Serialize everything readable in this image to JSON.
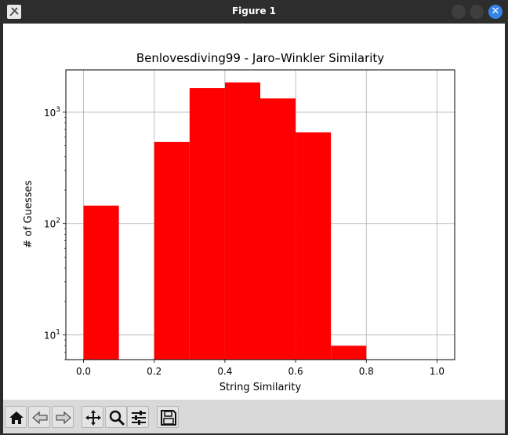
{
  "window": {
    "title": "Figure 1",
    "close_glyph": "✕"
  },
  "toolbar": {
    "buttons": [
      "home-icon",
      "back-icon",
      "forward-icon",
      "pan-icon",
      "zoom-icon",
      "configure-subplots-icon",
      "save-icon"
    ]
  },
  "colors": {
    "bar": "#ff0000",
    "grid": "#b0b0b0"
  },
  "chart_data": {
    "type": "bar",
    "title": "Benlovesdiving99 - Jaro–Winkler Similarity",
    "xlabel": "String Similarity",
    "ylabel": "# of Guesses",
    "yscale": "log",
    "xlim": [
      -0.05,
      1.05
    ],
    "ylim": [
      6,
      2400
    ],
    "bins": [
      {
        "x0": 0.0,
        "x1": 0.1,
        "value": 145
      },
      {
        "x0": 0.1,
        "x1": 0.2,
        "value": 0
      },
      {
        "x0": 0.2,
        "x1": 0.3,
        "value": 540
      },
      {
        "x0": 0.3,
        "x1": 0.4,
        "value": 1650
      },
      {
        "x0": 0.4,
        "x1": 0.5,
        "value": 1850
      },
      {
        "x0": 0.5,
        "x1": 0.6,
        "value": 1330
      },
      {
        "x0": 0.6,
        "x1": 0.7,
        "value": 660
      },
      {
        "x0": 0.7,
        "x1": 0.8,
        "value": 8
      },
      {
        "x0": 0.8,
        "x1": 0.9,
        "value": 0
      },
      {
        "x0": 0.9,
        "x1": 1.0,
        "value": 0
      }
    ],
    "xticks": [
      {
        "value": 0.0,
        "label": "0.0"
      },
      {
        "value": 0.2,
        "label": "0.2"
      },
      {
        "value": 0.4,
        "label": "0.4"
      },
      {
        "value": 0.6,
        "label": "0.6"
      },
      {
        "value": 0.8,
        "label": "0.8"
      },
      {
        "value": 1.0,
        "label": "1.0"
      }
    ],
    "yticks": [
      {
        "value": 10,
        "base": "10",
        "exp": "1"
      },
      {
        "value": 100,
        "base": "10",
        "exp": "2"
      },
      {
        "value": 1000,
        "base": "10",
        "exp": "3"
      }
    ],
    "grid": true
  }
}
